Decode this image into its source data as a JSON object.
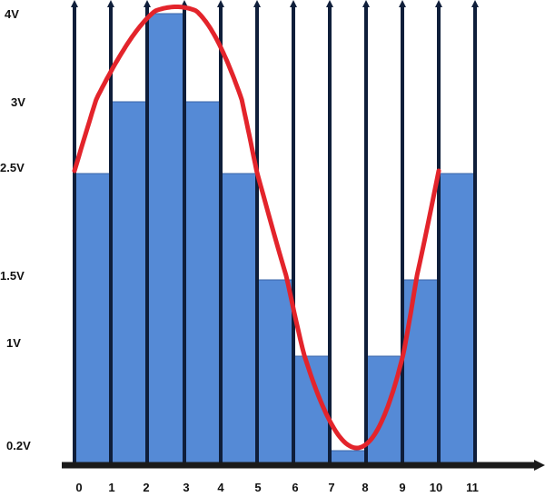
{
  "chart_data": {
    "type": "bar",
    "title": "",
    "xlabel": "",
    "ylabel": "",
    "x_tick_labels": [
      "0",
      "1",
      "2",
      "3",
      "4",
      "5",
      "6",
      "7",
      "8",
      "9",
      "10",
      "11"
    ],
    "y_tick_labels": [
      "4V",
      "3V",
      "2.5V",
      "1.5V",
      "1V",
      "0.2V"
    ],
    "y_tick_values": [
      4,
      3,
      2.5,
      1.5,
      1,
      0.2
    ],
    "bars": [
      {
        "from": 0,
        "to": 1,
        "value": 2.5
      },
      {
        "from": 1,
        "to": 2,
        "value": 3
      },
      {
        "from": 2,
        "to": 3,
        "value": 4
      },
      {
        "from": 3,
        "to": 4,
        "value": 3
      },
      {
        "from": 4,
        "to": 5,
        "value": 2.5
      },
      {
        "from": 5,
        "to": 6,
        "value": 1.5
      },
      {
        "from": 6,
        "to": 7,
        "value": 1
      },
      {
        "from": 7,
        "to": 8,
        "value": 0.2
      },
      {
        "from": 8,
        "to": 9,
        "value": 1
      },
      {
        "from": 9,
        "to": 10,
        "value": 1.5
      },
      {
        "from": 10,
        "to": 11,
        "value": 2.5
      }
    ],
    "curve": {
      "type": "sine",
      "x_start": 0,
      "x_end": 10,
      "offset": 2.5,
      "peak": 4.1,
      "trough": 0.2
    },
    "colors": {
      "bar": "#558ad6",
      "bar_edge": "#3a64a8",
      "grid_line": "#0f1e3a",
      "curve": "#e3242b",
      "axis": "#1a1a1a"
    }
  }
}
